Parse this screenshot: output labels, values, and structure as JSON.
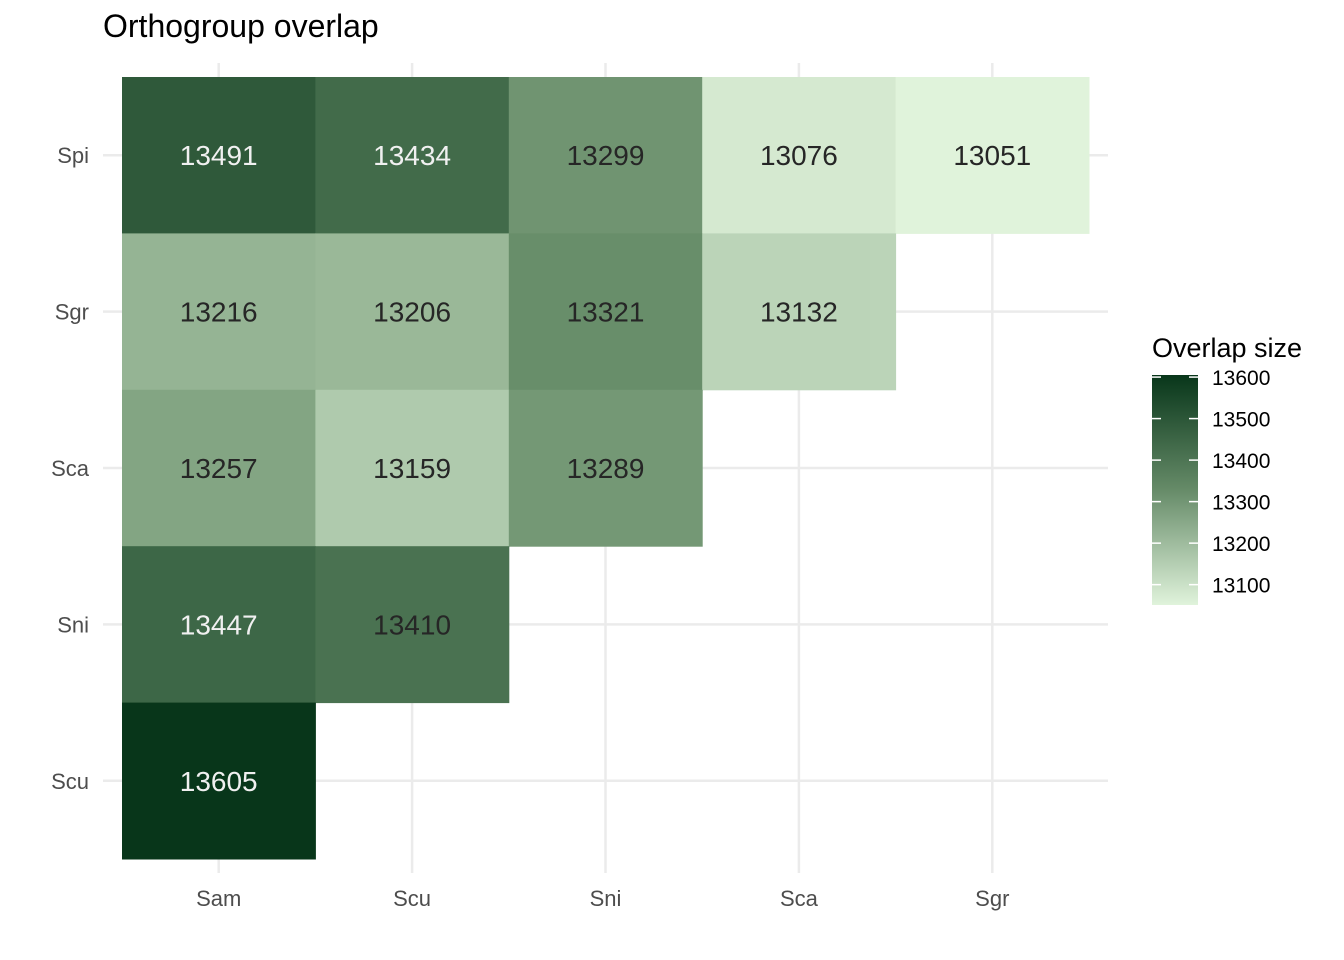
{
  "chart_data": {
    "type": "heatmap",
    "title": "Orthogroup overlap",
    "x_categories": [
      "Sam",
      "Scu",
      "Sni",
      "Sca",
      "Sgr"
    ],
    "y_categories": [
      "Spi",
      "Sgr",
      "Sca",
      "Sni",
      "Scu"
    ],
    "cells": [
      {
        "x": "Sam",
        "y": "Spi",
        "value": 13491
      },
      {
        "x": "Scu",
        "y": "Spi",
        "value": 13434
      },
      {
        "x": "Sni",
        "y": "Spi",
        "value": 13299
      },
      {
        "x": "Sca",
        "y": "Spi",
        "value": 13076
      },
      {
        "x": "Sgr",
        "y": "Spi",
        "value": 13051
      },
      {
        "x": "Sam",
        "y": "Sgr",
        "value": 13216
      },
      {
        "x": "Scu",
        "y": "Sgr",
        "value": 13206
      },
      {
        "x": "Sni",
        "y": "Sgr",
        "value": 13321
      },
      {
        "x": "Sca",
        "y": "Sgr",
        "value": 13132
      },
      {
        "x": "Sam",
        "y": "Sca",
        "value": 13257
      },
      {
        "x": "Scu",
        "y": "Sca",
        "value": 13159
      },
      {
        "x": "Sni",
        "y": "Sca",
        "value": 13289
      },
      {
        "x": "Sam",
        "y": "Sni",
        "value": 13447
      },
      {
        "x": "Scu",
        "y": "Sni",
        "value": 13410
      },
      {
        "x": "Sam",
        "y": "Scu",
        "value": 13605
      }
    ],
    "legend": {
      "title": "Overlap size",
      "ticks": [
        13600,
        13500,
        13400,
        13300,
        13200,
        13100
      ],
      "range": [
        13051,
        13605
      ],
      "placement": "right"
    },
    "colors": {
      "low": "#e0f3db",
      "mid": "#6f9470",
      "high": "#08361a",
      "grid": "#ebebeb"
    },
    "grid": true
  }
}
